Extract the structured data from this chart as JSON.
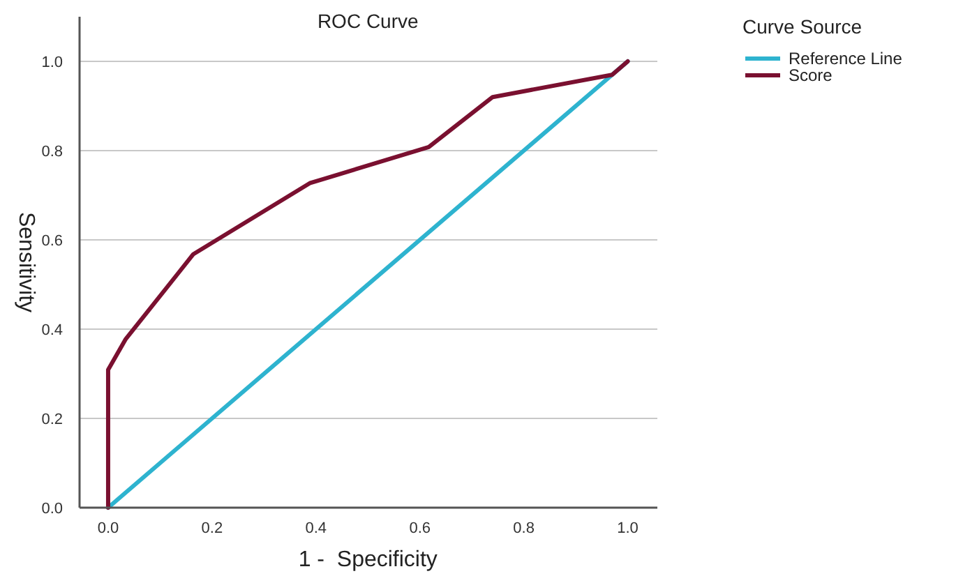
{
  "chart_data": {
    "type": "line",
    "title": "ROC Curve",
    "xlabel": "1 -  Specificity",
    "ylabel": "Sensitivity",
    "legend_title": "Curve Source",
    "series": [
      {
        "name": "Reference Line",
        "color": "#2eb3cf",
        "x": [
          0,
          1
        ],
        "values": [
          0,
          1
        ]
      },
      {
        "name": "Score",
        "color": "#7a1030",
        "x": [
          0,
          0,
          0.034,
          0.164,
          0.388,
          0.617,
          0.74,
          0.97,
          1
        ],
        "values": [
          0,
          0.309,
          0.378,
          0.568,
          0.727,
          0.808,
          0.92,
          0.97,
          1
        ]
      }
    ],
    "xlim": [
      -0.055,
      1.057
    ],
    "ylim": [
      0,
      1.1
    ],
    "xticks": [
      {
        "value": 0,
        "label": "0.0"
      },
      0.2,
      0.4,
      0.6,
      0.8,
      {
        "value": 1,
        "label": "1.0"
      }
    ],
    "yticks": [
      {
        "value": 0,
        "label": "0.0"
      },
      0.2,
      0.4,
      0.6,
      0.8,
      {
        "value": 1,
        "label": "1.0"
      }
    ],
    "grid": "y",
    "legend": "top right",
    "line_style": "solid",
    "marker": "none"
  }
}
